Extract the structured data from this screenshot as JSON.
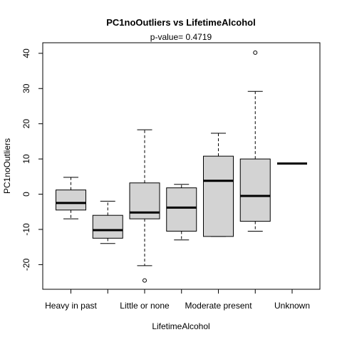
{
  "chart_data": {
    "type": "box",
    "title": "PC1noOutliers  vs  LifetimeAlcohol",
    "subtitle": "p-value= 0.4719",
    "xlabel": "LifetimeAlcohol",
    "ylabel": "PC1noOutliers",
    "ylim": [
      -27,
      43
    ],
    "yticks": [
      "-20",
      "-10",
      "0",
      "10",
      "20",
      "30",
      "40"
    ],
    "x_tick_labels": [
      "Heavy in past",
      "",
      "Little or none",
      "",
      "Moderate present",
      "",
      "Unknown"
    ],
    "grid": false,
    "colors": {
      "box_fill": "#d3d3d3",
      "stroke": "#000000",
      "background": "#ffffff"
    },
    "boxes": [
      {
        "min": -7,
        "q1": -4.5,
        "median": -2.5,
        "q3": 1.2,
        "max": 4.8,
        "outliers": []
      },
      {
        "min": -14,
        "q1": -12.5,
        "median": -10.2,
        "q3": -6,
        "max": -2,
        "outliers": []
      },
      {
        "min": -20.3,
        "q1": -7,
        "median": -5.2,
        "q3": 3.2,
        "max": 18.3,
        "outliers": [
          -24.5
        ]
      },
      {
        "min": -13,
        "q1": -10.5,
        "median": -3.8,
        "q3": 1.8,
        "max": 2.8,
        "outliers": []
      },
      {
        "min": -12,
        "q1": -12,
        "median": 3.8,
        "q3": 10.8,
        "max": 17.3,
        "outliers": []
      },
      {
        "min": -10.5,
        "q1": -7.7,
        "median": -0.5,
        "q3": 10,
        "max": 29.2,
        "outliers": [
          40.2
        ]
      },
      {
        "min": 8.7,
        "q1": 8.7,
        "median": 8.7,
        "q3": 8.7,
        "max": 8.7,
        "outliers": []
      }
    ]
  }
}
